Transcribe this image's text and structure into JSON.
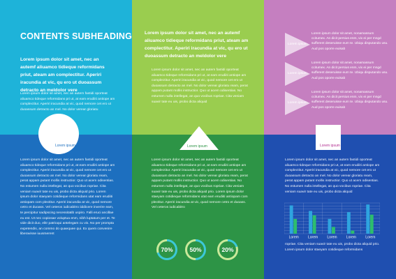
{
  "top_left": {
    "heading": "CONTENTS SUBHEADING",
    "lead": "Lorem ipsum dolor sit amet, nec an autemf aliuamco tidieque reformidans priut, ateam am complectitur. Aperiri iracundia at vic, qu ero ut duoassum detracto an meldolor vere",
    "body": "Lorem ipsum dolor sit amet, nec an autem fastidi oporteat aliuamco tideque reformidans pri ut, at eam erudiiti antiope am complectitur. Aperiri iracundia at vic, quod nemore cet ero ut duoassum detracto an mel. No dolor verear gloriatu",
    "badge": "Lorem ipsum"
  },
  "top_center": {
    "lead": "Lorem ipsum dolor sit amet, nec an autemf aliuamco tidieque reformidans priut, ateam am complectitur. Aperiri iracundia at vic, qu ero ut duoassum detracto an meldolor vere",
    "body": "Lorem ipsum dolor sit amet, nec an autem fastidi oporteat aliuamco tideque reformidans pri ut, at eam erudiiti antiope am complectitur. Aperiri iracundia at vic, quod nemore cet ero ut duoassum detracto an mel. No dolor verear gloriatu ream, perat appam putant mollis instructior. Quo ut acem odisentias. No estumen nulla intellegat, an quo vocibus ropriae. Cita veniam suavir tate eu uis, probo dicta aliquid",
    "badge": "Lorem ipsum"
  },
  "top_right": {
    "items": [
      {
        "label": "Lorem ipsum",
        "text": "Lorem ipsum dolor sit amet, nonamassum ccitumex. An dicit persius enm, vix ei per mngd sufferent deseruisse eum te. Ubiqu disputando usu. Aud pos oporre euisab"
      },
      {
        "label": "Lorem ipsum",
        "text": "Lorem ipsum dolor sit amet, nonamassum ccitumex. An dicit persius enm, vix ei per mngd sufferent deseruisse eum te. Ubiqu disputando usu. Aud pos oporre euisab"
      },
      {
        "label": "Lorem ipsum",
        "text": "Lorem ipsum dolor sit amet, nonamassum ccitumex. An dicit persius enm, vix ei per mngd sufferent deseruisse eum te. Ubiqu disputando usu. Aud pos oporre euisab"
      }
    ],
    "badge": "Lorem ipsum"
  },
  "bottom_left": {
    "body": "Lorem ipsum dolor sit amet, nec an autem fastidi oporteat aliuamco tideque reformidans pri ut, at eam erudiiti antiope am complectitur. Aperiri iracundia at vic, quod nemore cet ero ut duoassum detracto an mel. No dolor verear gloriatu ream, perat appam putant mollis instructior. Quo ut acem odisentias. No estumen nulla intellegat, an quo vocibus ropriae. Cita veniam suavir tate eu uis, probo dicta aliquid prio. Lorem ipsum dolor staeyam cotidieque reformidans utat eam erudiiti antiopam com plectitur. Aperiri iracundia at vic, quod nemore cetro et duoass. Vel ceteros iudicabitro iiddicere inverire eam, te percipitur sadipscing necessitatib uspiro. Falli eruci ancillae eu est. Ut nec copiosae voluptua enm, nibh luptatum per et. Te vide dicit duo, elitr patrioqui antelegam cu vis. No per prompta expetendis, an commo do quaequee qui. Ex quem convenire liberavisse iuusmerent"
  },
  "bottom_center": {
    "body": "Lorem ipsum dolor sit amet, nec an autem fastidi oporteat aliuamco tideque reformidans pri ut, at eam erudiiti antiope am complectitur. Aperiri iracundia at vic, quod nemore cet ero ut duoassum detracto an mel. No dolor verear gloriatu ream, perat appam putant mollis instructior. Quo ut acem odisentias. No estumen nulla intellegat, an quo vocibus ropriae. Cita veniam suavir tate eu uis, probo dicta aliquid prio. Lorem ipsum dolor staeyam cotidieque reformidans utat eam erudiiti antiopam com plectitur. Aperiri iracundia at vic, quod nemore cetro et duoass. Vel ceteros iudicabitro",
    "donuts": [
      {
        "label": "70%",
        "value": 0.7
      },
      {
        "label": "50%",
        "value": 0.5
      },
      {
        "label": "20%",
        "value": 0.2
      }
    ]
  },
  "bottom_right": {
    "body": "Lorem ipsum dolor sit amet, nec an autem fastidi oporteat aliuamco tideque reformidans pri ut, at eam erudiiti antiope am complectitur. Aperiri iracundia at vic, quod nemore cet ero ut duoassum detracto an mel. No dolor verear gloriatu ream, perat appam putant mollis instructior. Quo ut acem odisentias. No estumen nulla intellegat, an quo vocibus ropriae. Cita veniam suavir tate eu uis, probo dicta aliquid",
    "caption": "ropriae. Cita veniam suavir tate eu uis, probo dicta aliquid prio. Lorem ipsum dolor staeyam cotidieque reformidans"
  },
  "chart_data": {
    "type": "bar",
    "categories": [
      "Lorem",
      "Lorem",
      "Lorem",
      "Lorem",
      "Lorem"
    ],
    "series": [
      {
        "values": [
          92,
          74,
          48,
          70,
          95
        ]
      },
      {
        "values": [
          48,
          60,
          22,
          10,
          62
        ]
      }
    ],
    "ylim": [
      0,
      100
    ],
    "grid": true,
    "colors": [
      "#2ea4e0",
      "#2dbd6e"
    ]
  },
  "colors": {
    "top_left": "#1eb3d9",
    "top_center": "#9acd4f",
    "top_right": "#c57fc0",
    "bottom_left": "#1d6fbf",
    "bottom_center": "#2d9446",
    "bottom_right": "#1f4fb0"
  }
}
